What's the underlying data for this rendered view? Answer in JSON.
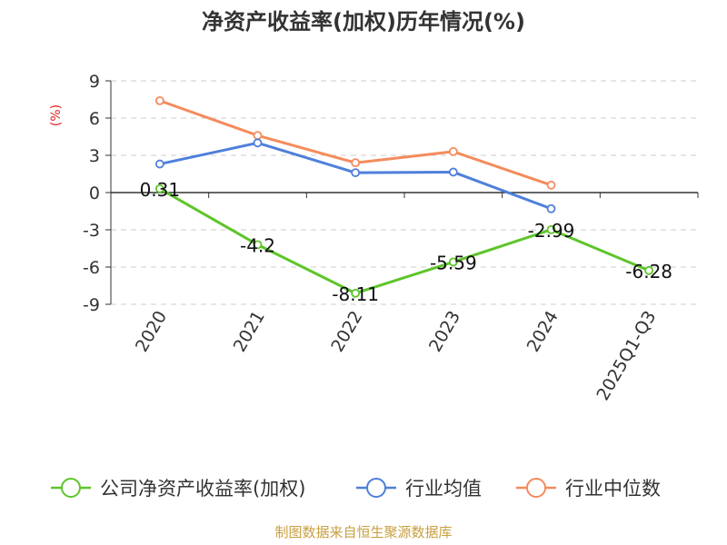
{
  "colors": {
    "roe": "#5ec52a",
    "avg": "#4f7fdb",
    "median": "#f48b5c",
    "ylabel": "#e02020",
    "source": "#c8a040",
    "grid": "#cccccc",
    "axis": "#333333"
  },
  "chart_data": {
    "type": "line",
    "title": "净资产收益率(加权)历年情况(%)",
    "ylabel": "(%)",
    "xlabel": "",
    "categories": [
      "2020",
      "2021",
      "2022",
      "2023",
      "2024",
      "2025Q1-Q3"
    ],
    "ylim": [
      -9,
      9
    ],
    "yticks": [
      9,
      6,
      3,
      0,
      -3,
      -6,
      -9
    ],
    "grid": true,
    "legend_position": "bottom",
    "series": [
      {
        "name": "公司净资产收益率(加权)",
        "color_key": "roe",
        "values": [
          0.31,
          -4.2,
          -8.11,
          -5.59,
          -2.99,
          -6.28
        ],
        "labels": [
          "0.31",
          "-4.2",
          "-8.11",
          "-5.59",
          "-2.99",
          "-6.28"
        ]
      },
      {
        "name": "行业均值",
        "color_key": "avg",
        "values": [
          2.3,
          4.0,
          1.6,
          1.65,
          -1.3,
          null
        ]
      },
      {
        "name": "行业中位数",
        "color_key": "median",
        "values": [
          7.4,
          4.6,
          2.4,
          3.3,
          0.6,
          null
        ]
      }
    ]
  },
  "source": "制图数据来自恒生聚源数据库"
}
